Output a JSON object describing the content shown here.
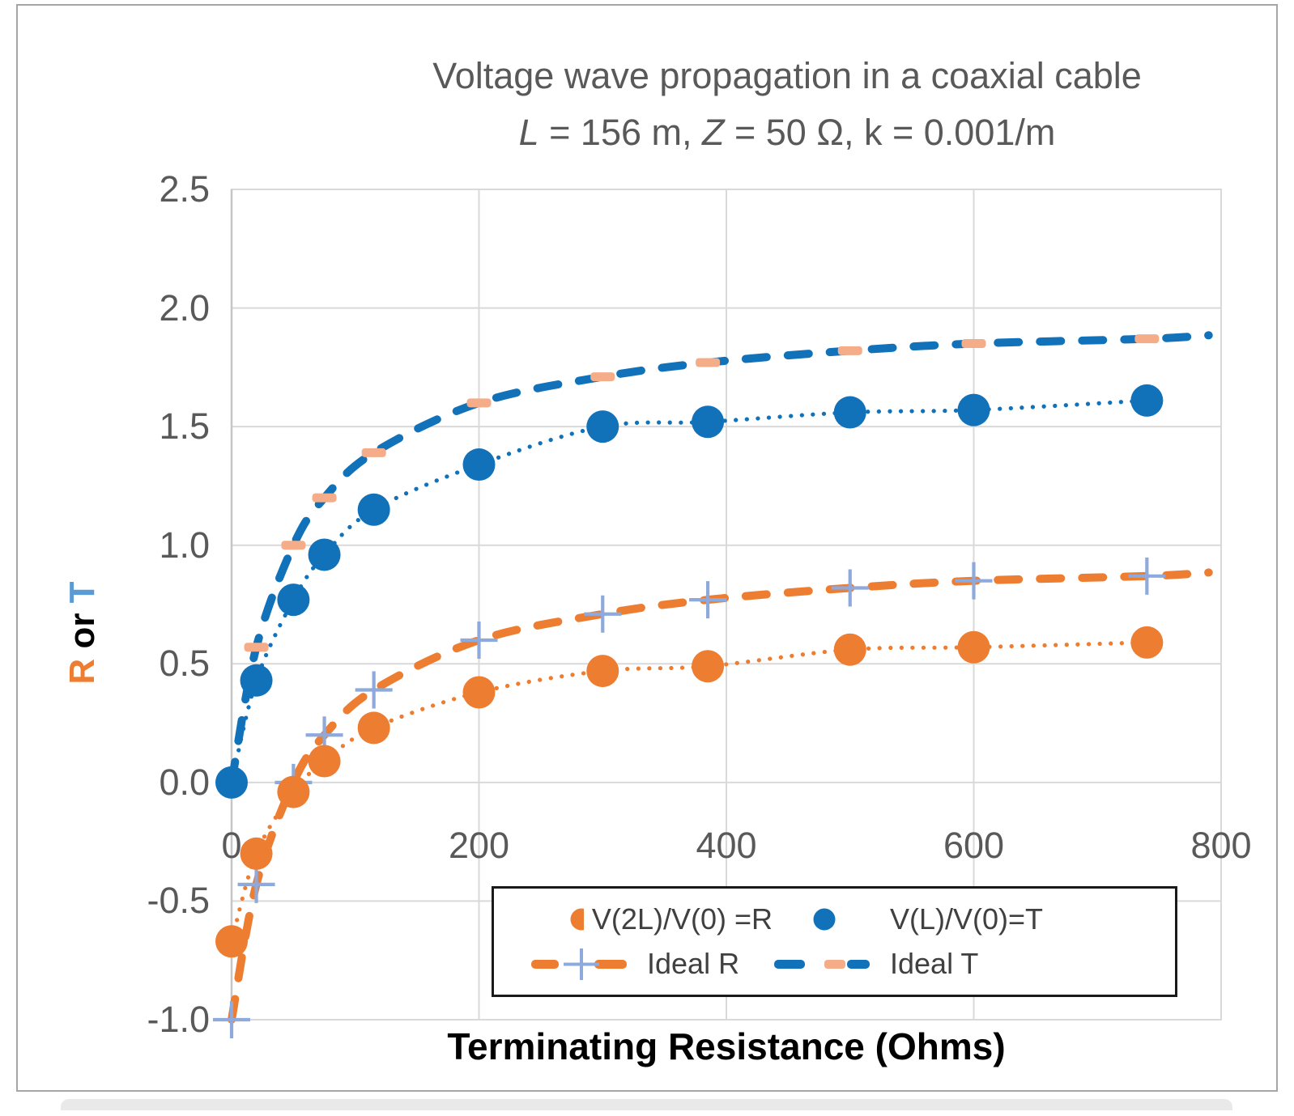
{
  "window": {
    "background": "#FFFFFF",
    "bottom_bar_color": "#E9E9E9"
  },
  "chart_data": {
    "type": "scatter",
    "title": "Voltage wave propagation in a coaxial cable",
    "subtitle": "L = 156 m, Z = 50 Ω, k = 0.001/m",
    "subtitle_parts": [
      {
        "text": "L",
        "italic": true
      },
      {
        "text": " = 156 m, ",
        "italic": false
      },
      {
        "text": "Z",
        "italic": true
      },
      {
        "text": " = 50 Ω, k = 0.001/m",
        "italic": false
      }
    ],
    "xlabel": "Terminating Resistance (Ohms)",
    "ylabel": "R or T",
    "ylabel_parts": [
      {
        "text": "R",
        "color": "#ED7D31"
      },
      {
        "text": " or ",
        "color": "#000000"
      },
      {
        "text": "T",
        "color": "#5B9BD5"
      }
    ],
    "xlim": [
      0,
      800
    ],
    "ylim": [
      -1.0,
      2.5
    ],
    "grid": true,
    "legend_position": "bottom-inside",
    "xticks": [
      {
        "label": "0",
        "value": 0
      },
      {
        "label": "200",
        "value": 200
      },
      {
        "label": "400",
        "value": 400
      },
      {
        "label": "600",
        "value": 600
      },
      {
        "label": "800",
        "value": 800
      }
    ],
    "yticks": [
      {
        "label": "2.5",
        "value": 2.5
      },
      {
        "label": "2.0",
        "value": 2.0
      },
      {
        "label": "1.5",
        "value": 1.5
      },
      {
        "label": "1.0",
        "value": 1.0
      },
      {
        "label": "0.5",
        "value": 0.5
      },
      {
        "label": "0.0",
        "value": 0.0
      },
      {
        "label": "-0.5",
        "value": -0.5
      },
      {
        "label": "-1.0",
        "value": -1.0
      }
    ],
    "colors": {
      "grid": "#D9D9D9",
      "axis_line": "#C6C6C6",
      "tick_text": "#595959",
      "title_text": "#595959",
      "axis_title_text": "#000000",
      "legend_text": "#404040",
      "legend_border": "#1A1A1A",
      "chart_border": "#A6A6A6",
      "series_orange": "#ED7D31",
      "series_blue": "#1172BA",
      "ideal_r_plus_marker": "#8EA9DB",
      "ideal_t_dash_marker": "#F4AD88"
    },
    "series": [
      {
        "name": "V(2L)/V(0) =R",
        "color": "#ED7D31",
        "line": "dotted",
        "marker": "circle",
        "x": [
          0,
          20,
          50,
          75,
          115,
          200,
          300,
          385,
          500,
          600,
          740
        ],
        "y": [
          -0.67,
          -0.3,
          -0.04,
          0.09,
          0.23,
          0.38,
          0.47,
          0.49,
          0.56,
          0.57,
          0.59
        ]
      },
      {
        "name": "V(L)/V(0)=T",
        "color": "#1172BA",
        "line": "dotted",
        "marker": "circle",
        "x": [
          0,
          20,
          50,
          75,
          115,
          200,
          300,
          385,
          500,
          600,
          740
        ],
        "y": [
          0.0,
          0.43,
          0.77,
          0.96,
          1.15,
          1.34,
          1.5,
          1.52,
          1.56,
          1.57,
          1.61
        ]
      },
      {
        "name": "Ideal R",
        "color": "#ED7D31",
        "line": "dashed",
        "marker": "plus",
        "marker_color": "#8EA9DB",
        "x": [
          0,
          20,
          50,
          75,
          115,
          200,
          300,
          385,
          500,
          600,
          740
        ],
        "y": [
          -1.0,
          -0.43,
          0.0,
          0.2,
          0.39,
          0.6,
          0.71,
          0.77,
          0.82,
          0.85,
          0.87
        ],
        "extend": {
          "x": 790,
          "y": 0.885
        }
      },
      {
        "name": "Ideal T",
        "color": "#1172BA",
        "line": "dashed",
        "marker": "dash",
        "marker_color": "#F4AD88",
        "x": [
          0,
          20,
          50,
          75,
          115,
          200,
          300,
          385,
          500,
          600,
          740
        ],
        "y": [
          0.0,
          0.57,
          1.0,
          1.2,
          1.39,
          1.6,
          1.71,
          1.77,
          1.82,
          1.85,
          1.87
        ],
        "extend": {
          "x": 790,
          "y": 1.885
        }
      }
    ]
  }
}
